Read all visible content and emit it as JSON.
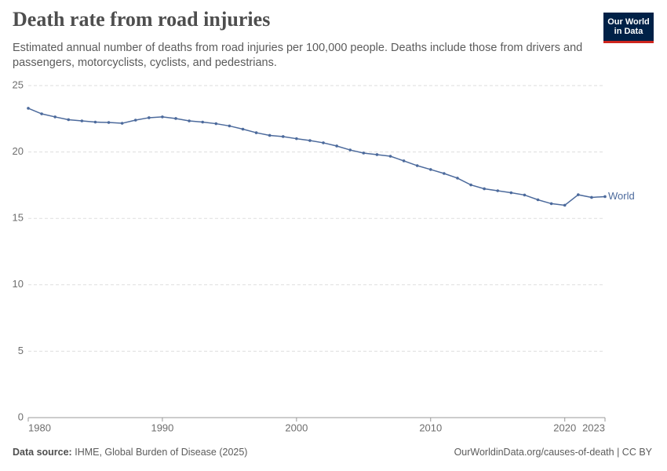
{
  "chart_data": {
    "type": "line",
    "title": "Death rate from road injuries",
    "subtitle": "Estimated annual number of deaths from road injuries per 100,000 people. Deaths include those from drivers and passengers, motorcyclists, cyclists, and pedestrians.",
    "logo": [
      "Our World",
      "in Data"
    ],
    "source_label": "Data source:",
    "source": "IHME, Global Burden of Disease (2025)",
    "url": "OurWorldinData.org/causes-of-death | CC BY",
    "x": [
      1980,
      1981,
      1982,
      1983,
      1984,
      1985,
      1986,
      1987,
      1988,
      1989,
      1990,
      1991,
      1992,
      1993,
      1994,
      1995,
      1996,
      1997,
      1998,
      1999,
      2000,
      2001,
      2002,
      2003,
      2004,
      2005,
      2006,
      2007,
      2008,
      2009,
      2010,
      2011,
      2012,
      2013,
      2014,
      2015,
      2016,
      2017,
      2018,
      2019,
      2020,
      2021,
      2022,
      2023
    ],
    "series": [
      {
        "name": "World",
        "color": "#4c6a9c",
        "values": [
          23.29,
          22.87,
          22.64,
          22.43,
          22.34,
          22.25,
          22.22,
          22.16,
          22.4,
          22.58,
          22.64,
          22.52,
          22.34,
          22.25,
          22.13,
          21.96,
          21.72,
          21.45,
          21.25,
          21.16,
          21.0,
          20.86,
          20.69,
          20.45,
          20.15,
          19.92,
          19.8,
          19.68,
          19.33,
          18.97,
          18.68,
          18.38,
          18.03,
          17.52,
          17.23,
          17.08,
          16.93,
          16.76,
          16.4,
          16.11,
          15.99,
          16.78,
          16.58,
          16.64
        ]
      }
    ],
    "xlim": [
      1980,
      2023
    ],
    "xticks": [
      1980,
      1990,
      2000,
      2010,
      2020,
      2023
    ],
    "ylim": [
      0,
      25
    ],
    "yticks": [
      0,
      5,
      10,
      15,
      20,
      25
    ],
    "grid": true
  }
}
